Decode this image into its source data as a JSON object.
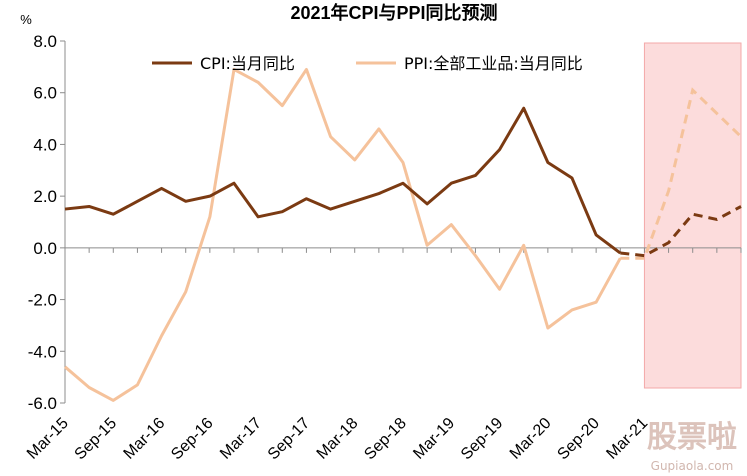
{
  "chart_data": {
    "type": "line",
    "title": "2021年CPI与PPI同比预测",
    "y_unit": "%",
    "ylim": [
      -6.0,
      8.0
    ],
    "y_ticks": [
      "8.0",
      "6.0",
      "4.0",
      "2.0",
      "0.0",
      "-2.0",
      "-4.0",
      "-6.0"
    ],
    "x_tick_labels": [
      "Mar-15",
      "Sep-15",
      "Mar-16",
      "Sep-16",
      "Mar-17",
      "Sep-17",
      "Mar-18",
      "Sep-18",
      "Mar-19",
      "Sep-19",
      "Mar-20",
      "Sep-20",
      "Mar-21"
    ],
    "legend_position": "top",
    "grid": false,
    "forecast_region": {
      "from_point": 24,
      "to_point": 28,
      "color": "#fcdcdc",
      "border": "#f3a9a9"
    },
    "series": [
      {
        "name": "CPI:当月同比",
        "color": "#7b3a12",
        "values": [
          1.5,
          1.6,
          1.3,
          1.8,
          2.3,
          1.8,
          2.0,
          2.5,
          1.2,
          1.4,
          1.9,
          1.5,
          1.8,
          2.1,
          2.5,
          1.7,
          2.5,
          2.8,
          3.8,
          5.4,
          3.3,
          2.7,
          0.5,
          -0.2
        ],
        "forecast": [
          -0.3,
          0.2,
          1.3,
          1.1,
          1.6
        ]
      },
      {
        "name": "PPI:全部工业品:当月同比",
        "color": "#f5c29b",
        "values": [
          -4.6,
          -5.4,
          -5.9,
          -5.3,
          -3.4,
          -1.7,
          1.2,
          6.9,
          6.4,
          5.5,
          6.9,
          4.3,
          3.4,
          4.6,
          3.3,
          0.1,
          0.9,
          -0.3,
          -1.6,
          0.1,
          -3.1,
          -2.4,
          -2.1,
          -0.4
        ],
        "forecast": [
          -0.4,
          2.2,
          6.1,
          5.2,
          4.3
        ]
      }
    ]
  },
  "watermark": {
    "text": "股票啦",
    "url_text": "Gupiaola.com"
  }
}
